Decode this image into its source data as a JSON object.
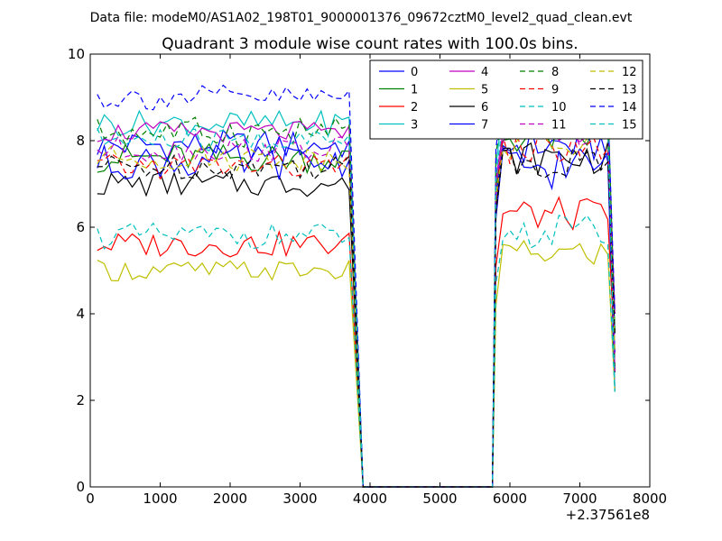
{
  "header": {
    "suptitle": "Data file: modeM0/AS1A02_198T01_9000001376_09672cztM0_level2_quad_clean.evt"
  },
  "chart_data": {
    "type": "line",
    "title": "Quadrant 3 module wise count rates with 100.0s bins.",
    "xlabel": "",
    "ylabel": "",
    "x_offset_label": "+2.37561e8",
    "xlim": [
      0,
      8000
    ],
    "ylim": [
      0,
      10
    ],
    "x_ticks": [
      0,
      1000,
      2000,
      3000,
      4000,
      5000,
      6000,
      7000,
      8000
    ],
    "x_tick_labels": [
      "0",
      "1000",
      "2000",
      "3000",
      "4000",
      "5000",
      "6000",
      "7000",
      "8000"
    ],
    "y_ticks": [
      0,
      2,
      4,
      6,
      8,
      10
    ],
    "y_tick_labels": [
      "0",
      "2",
      "4",
      "6",
      "8",
      "10"
    ],
    "legend_position": "top-right",
    "segments": [
      {
        "start": 100,
        "step": 100,
        "count": 37
      },
      {
        "start": 5800,
        "step": 100,
        "count": 18
      }
    ],
    "off_interval_x": [
      3900,
      3950,
      5750
    ],
    "series": [
      {
        "name": "0",
        "color": "#0000ff",
        "dash": "solid",
        "base1": 7.9,
        "base2": 7.9,
        "amp": 0.35
      },
      {
        "name": "1",
        "color": "#008000",
        "dash": "solid",
        "base1": 7.6,
        "base2": 8.1,
        "amp": 0.35
      },
      {
        "name": "2",
        "color": "#ff0000",
        "dash": "solid",
        "base1": 5.6,
        "base2": 6.3,
        "amp": 0.3
      },
      {
        "name": "3",
        "color": "#00bfbf",
        "dash": "solid",
        "base1": 8.4,
        "base2": 8.6,
        "amp": 0.3
      },
      {
        "name": "4",
        "color": "#bf00bf",
        "dash": "solid",
        "base1": 8.2,
        "base2": 8.3,
        "amp": 0.25
      },
      {
        "name": "5",
        "color": "#bfbf00",
        "dash": "solid",
        "base1": 5.0,
        "base2": 5.4,
        "amp": 0.25
      },
      {
        "name": "6",
        "color": "#000000",
        "dash": "solid",
        "base1": 7.0,
        "base2": 7.6,
        "amp": 0.3
      },
      {
        "name": "7",
        "color": "#0000ff",
        "dash": "solid",
        "base1": 7.5,
        "base2": 7.4,
        "amp": 0.4
      },
      {
        "name": "8",
        "color": "#008000",
        "dash": "dashed",
        "base1": 8.2,
        "base2": 8.9,
        "amp": 0.35
      },
      {
        "name": "9",
        "color": "#ff0000",
        "dash": "dashed",
        "base1": 7.4,
        "base2": 7.8,
        "amp": 0.3
      },
      {
        "name": "10",
        "color": "#00bfbf",
        "dash": "dashed",
        "base1": 5.8,
        "base2": 5.9,
        "amp": 0.3
      },
      {
        "name": "11",
        "color": "#bf00bf",
        "dash": "dashed",
        "base1": 7.8,
        "base2": 8.2,
        "amp": 0.3
      },
      {
        "name": "12",
        "color": "#bfbf00",
        "dash": "dashed",
        "base1": 7.6,
        "base2": 7.9,
        "amp": 0.3
      },
      {
        "name": "13",
        "color": "#000000",
        "dash": "dashed",
        "base1": 7.4,
        "base2": 7.5,
        "amp": 0.3
      },
      {
        "name": "14",
        "color": "#0000ff",
        "dash": "dashed",
        "base1": 9.0,
        "base2": 9.0,
        "amp": 0.3
      },
      {
        "name": "15",
        "color": "#00bfbf",
        "dash": "dashed",
        "base1": 8.0,
        "base2": 8.4,
        "amp": 0.3
      }
    ]
  }
}
